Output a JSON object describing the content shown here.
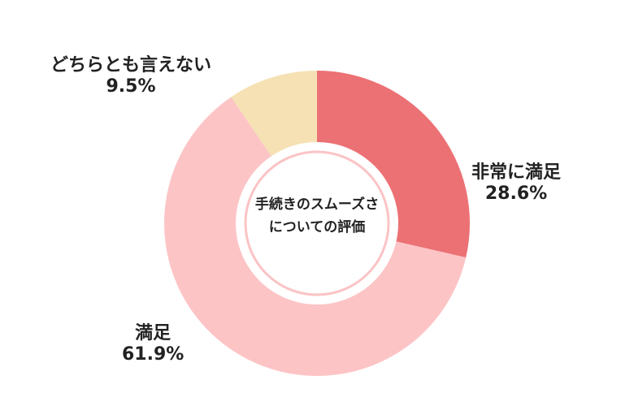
{
  "chart_data": {
    "type": "pie",
    "title": "手続きのスムーズさについての評価",
    "title_lines": [
      "手続きのスムーズさ",
      "についての評価"
    ],
    "series": [
      {
        "name": "非常に満足",
        "value": 28.6,
        "label": "28.6%",
        "color": "#ec7174"
      },
      {
        "name": "満足",
        "value": 61.9,
        "label": "61.9%",
        "color": "#fdc4c6"
      },
      {
        "name": "どちらとも言えない",
        "value": 9.5,
        "label": "9.5%",
        "color": "#f5e1b3"
      }
    ],
    "donut": true,
    "legend": "none"
  }
}
